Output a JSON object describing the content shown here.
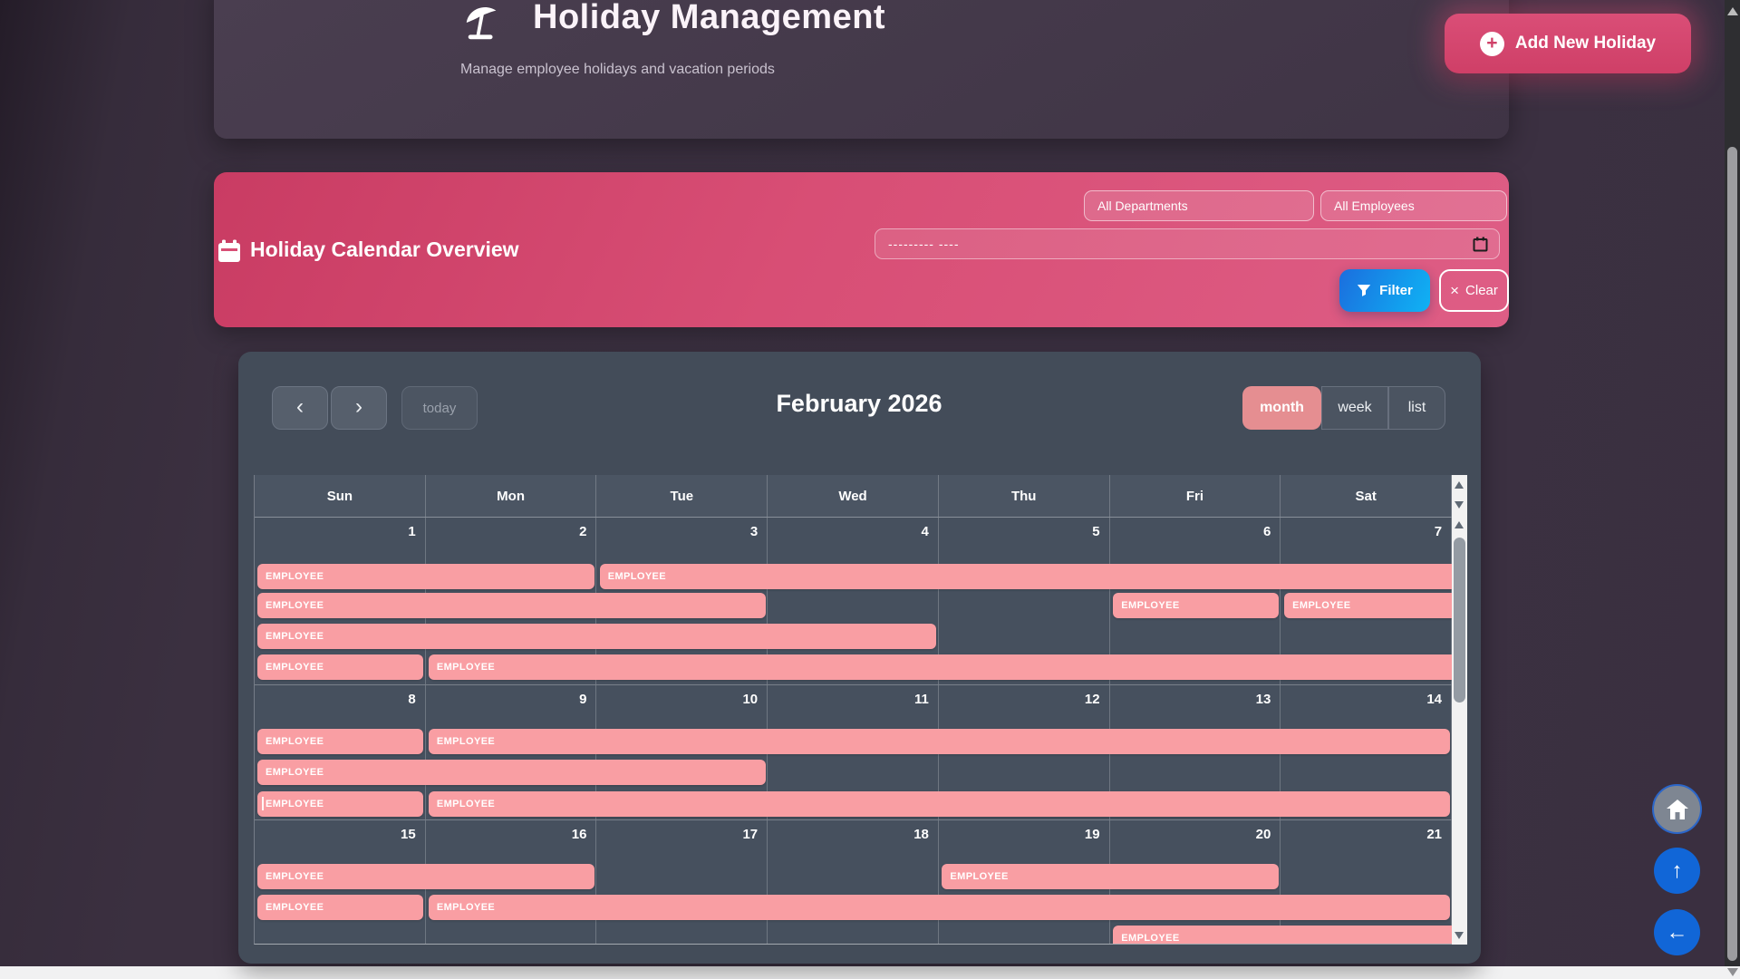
{
  "header": {
    "title": "Holiday Management",
    "subtitle": "Manage employee holidays and vacation periods",
    "add_button_label": "Add New Holiday"
  },
  "filters": {
    "section_title": "Holiday Calendar Overview",
    "department_select": "All Departments",
    "employee_select": "All Employees",
    "date_placeholder": "--------- ----",
    "filter_button": "Filter",
    "clear_button": "Clear"
  },
  "icons": {
    "plus": "+",
    "clear_x": "×",
    "prev": "‹",
    "next": "›",
    "up_arrow": "↑",
    "back_arrow": "←"
  },
  "colors": {
    "accent_pink": "#d84e75",
    "accent_blue": "#129fee",
    "event_pink": "#f99ea3",
    "card_slate": "#434c59",
    "page_purple": "#3b3040"
  },
  "calendar": {
    "title": "February 2026",
    "today_button": "today",
    "views": [
      "month",
      "week",
      "list"
    ],
    "active_view": "month",
    "day_headers": [
      "Sun",
      "Mon",
      "Tue",
      "Wed",
      "Thu",
      "Fri",
      "Sat"
    ],
    "weeks": [
      {
        "days": [
          1,
          2,
          3,
          4,
          5,
          6,
          7
        ],
        "events": [
          {
            "lane": 0,
            "start": 0,
            "end": 1,
            "round_left": true,
            "round_right": true,
            "label": "EMPLOYEE"
          },
          {
            "lane": 0,
            "start": 2,
            "end": 6,
            "round_left": true,
            "round_right": false,
            "label": "EMPLOYEE"
          },
          {
            "lane": 1,
            "start": 0,
            "end": 2,
            "round_left": true,
            "round_right": true,
            "label": "EMPLOYEE"
          },
          {
            "lane": 1,
            "start": 5,
            "end": 5,
            "round_left": true,
            "round_right": true,
            "label": "EMPLOYEE"
          },
          {
            "lane": 1,
            "start": 6,
            "end": 6,
            "round_left": true,
            "round_right": false,
            "label": "EMPLOYEE"
          },
          {
            "lane": 2,
            "start": 0,
            "end": 3,
            "round_left": true,
            "round_right": true,
            "label": "EMPLOYEE"
          },
          {
            "lane": 3,
            "start": 0,
            "end": 0,
            "round_left": true,
            "round_right": true,
            "label": "EMPLOYEE"
          },
          {
            "lane": 3,
            "start": 1,
            "end": 6,
            "round_left": true,
            "round_right": false,
            "label": "EMPLOYEE"
          }
        ]
      },
      {
        "days": [
          8,
          9,
          10,
          11,
          12,
          13,
          14
        ],
        "events": [
          {
            "lane": 0,
            "start": 0,
            "end": 0,
            "round_left": true,
            "round_right": true,
            "label": "EMPLOYEE"
          },
          {
            "lane": 0,
            "start": 1,
            "end": 6,
            "round_left": true,
            "round_right": true,
            "label": "EMPLOYEE"
          },
          {
            "lane": 1,
            "start": 0,
            "end": 2,
            "round_left": true,
            "round_right": true,
            "label": "EMPLOYEE"
          },
          {
            "lane": 2,
            "start": 0,
            "end": 0,
            "round_left": true,
            "round_right": true,
            "label": "EMPLOYEE",
            "tick": true
          },
          {
            "lane": 2,
            "start": 1,
            "end": 6,
            "round_left": true,
            "round_right": true,
            "label": "EMPLOYEE"
          }
        ]
      },
      {
        "days": [
          15,
          16,
          17,
          18,
          19,
          20,
          21
        ],
        "events": [
          {
            "lane": 0,
            "start": 0,
            "end": 1,
            "round_left": true,
            "round_right": true,
            "label": "EMPLOYEE"
          },
          {
            "lane": 0,
            "start": 4,
            "end": 5,
            "round_left": true,
            "round_right": true,
            "label": "EMPLOYEE"
          },
          {
            "lane": 1,
            "start": 0,
            "end": 0,
            "round_left": true,
            "round_right": true,
            "label": "EMPLOYEE"
          },
          {
            "lane": 1,
            "start": 1,
            "end": 6,
            "round_left": true,
            "round_right": true,
            "label": "EMPLOYEE"
          },
          {
            "lane": 2,
            "start": 5,
            "end": 6,
            "round_left": true,
            "round_right": false,
            "label": "EMPLOYEE"
          }
        ]
      }
    ]
  }
}
